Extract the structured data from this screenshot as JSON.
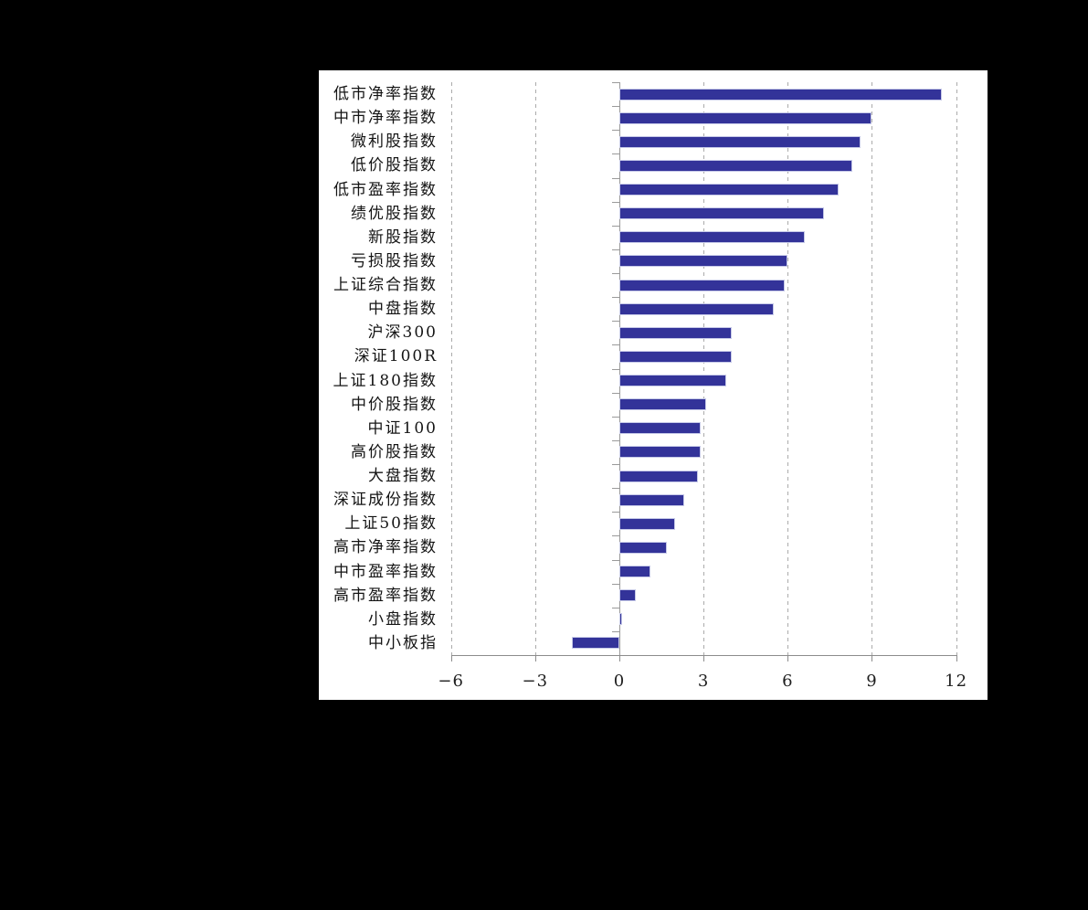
{
  "chart_data": {
    "type": "bar",
    "orientation": "horizontal",
    "title": "",
    "xlabel": "",
    "ylabel": "",
    "categories": [
      "低市净率指数",
      "中市净率指数",
      "微利股指数",
      "低价股指数",
      "低市盈率指数",
      "绩优股指数",
      "新股指数",
      "亏损股指数",
      "上证综合指数",
      "中盘指数",
      "沪深300",
      "深证100R",
      "上证180指数",
      "中价股指数",
      "中证100",
      "高价股指数",
      "大盘指数",
      "深证成份指数",
      "上证50指数",
      "高市净率指数",
      "中市盈率指数",
      "高市盈率指数",
      "小盘指数",
      "中小板指"
    ],
    "values": [
      11.5,
      9.0,
      8.6,
      8.3,
      7.8,
      7.3,
      6.6,
      6.0,
      5.9,
      5.5,
      4.0,
      4.0,
      3.8,
      3.1,
      2.9,
      2.9,
      2.8,
      2.3,
      2.0,
      1.7,
      1.1,
      0.6,
      0.1,
      -1.7
    ],
    "xlim": [
      -6,
      12
    ],
    "xticks": [
      -6,
      -3,
      0,
      3,
      6,
      9,
      12
    ],
    "xtick_labels": [
      "−6",
      "−3",
      "0",
      "3",
      "6",
      "9",
      "12"
    ],
    "gridline_values": [
      -6,
      -3,
      3,
      6,
      9,
      12
    ],
    "grid": "vertical-dashed",
    "legend": "none",
    "bar_color": "#333399",
    "bar_border_color": "#c7cae8",
    "axis_color": "#9a9a9a",
    "gridline_color": "#ababab",
    "panel_bg": "#ffffff",
    "page_bg": "#000000"
  }
}
